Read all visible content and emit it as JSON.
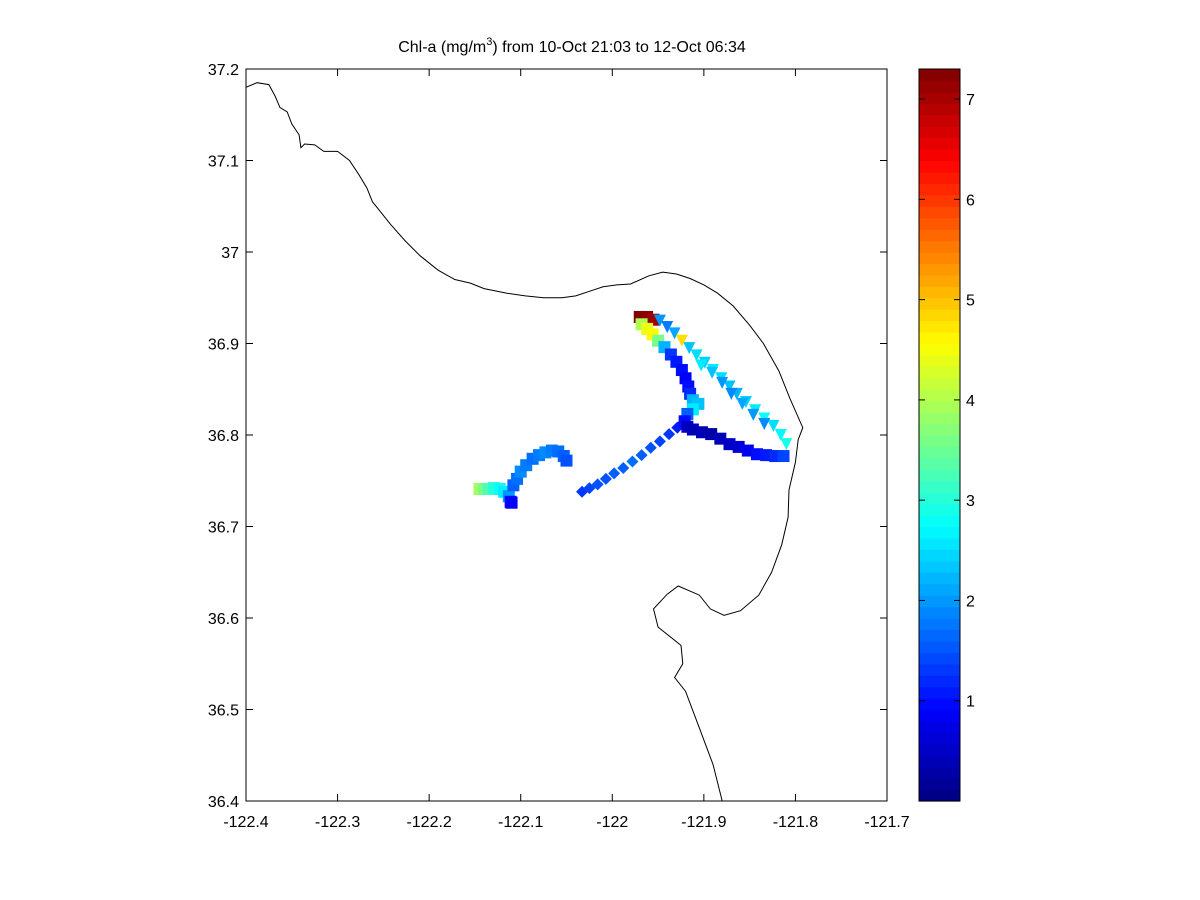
{
  "title": {
    "prefix": "Chl-a (mg/m",
    "superscript": "3",
    "suffix": ") from 10-Oct 21:03 to 12-Oct 06:34"
  },
  "map": {
    "xlim": [
      -122.4,
      -121.7
    ],
    "ylim": [
      36.4,
      37.2
    ],
    "x_ticks": [
      -122.4,
      -122.3,
      -122.2,
      -122.1,
      -122.0,
      -121.9,
      -121.8,
      -121.7
    ],
    "x_tick_labels": [
      "-122.4",
      "-122.3",
      "-122.2",
      "-122.1",
      "-122",
      "-121.9",
      "-121.8",
      "-121.7"
    ],
    "y_ticks": [
      37.2,
      37.1,
      37.0,
      36.9,
      36.8,
      36.7,
      36.6,
      36.5,
      36.4
    ],
    "y_tick_labels": [
      "37.2",
      "37.1",
      "37",
      "36.9",
      "36.8",
      "36.7",
      "36.6",
      "36.5",
      "36.4"
    ]
  },
  "colorbar": {
    "colormap": "jet",
    "range": [
      0,
      7.3
    ],
    "ticks": [
      1,
      2,
      3,
      4,
      5,
      6,
      7
    ],
    "tick_labels": [
      "1",
      "2",
      "3",
      "4",
      "5",
      "6",
      "7"
    ]
  },
  "chart_data": {
    "type": "scatter",
    "xlim": [
      -122.4,
      -121.7
    ],
    "ylim": [
      36.4,
      37.2
    ],
    "color_variable": "Chl-a (mg/m3)",
    "coastline": [
      [
        -122.4,
        37.18
      ],
      [
        -122.388,
        37.185
      ],
      [
        -122.375,
        37.183
      ],
      [
        -122.368,
        37.17
      ],
      [
        -122.363,
        37.158
      ],
      [
        -122.355,
        37.153
      ],
      [
        -122.35,
        37.14
      ],
      [
        -122.342,
        37.128
      ],
      [
        -122.34,
        37.114
      ],
      [
        -122.336,
        37.118
      ],
      [
        -122.325,
        37.117
      ],
      [
        -122.315,
        37.11
      ],
      [
        -122.3,
        37.11
      ],
      [
        -122.287,
        37.1
      ],
      [
        -122.277,
        37.085
      ],
      [
        -122.268,
        37.07
      ],
      [
        -122.262,
        37.055
      ],
      [
        -122.254,
        37.045
      ],
      [
        -122.242,
        37.03
      ],
      [
        -122.226,
        37.012
      ],
      [
        -122.21,
        36.996
      ],
      [
        -122.19,
        36.98
      ],
      [
        -122.172,
        36.97
      ],
      [
        -122.155,
        36.966
      ],
      [
        -122.14,
        36.96
      ],
      [
        -122.115,
        36.955
      ],
      [
        -122.095,
        36.952
      ],
      [
        -122.075,
        36.95
      ],
      [
        -122.055,
        36.95
      ],
      [
        -122.04,
        36.952
      ],
      [
        -122.025,
        36.957
      ],
      [
        -122.01,
        36.962
      ],
      [
        -121.995,
        36.964
      ],
      [
        -121.98,
        36.965
      ],
      [
        -121.96,
        36.974
      ],
      [
        -121.945,
        36.978
      ],
      [
        -121.93,
        36.976
      ],
      [
        -121.915,
        36.971
      ],
      [
        -121.9,
        36.964
      ],
      [
        -121.885,
        36.955
      ],
      [
        -121.868,
        36.941
      ],
      [
        -121.85,
        36.92
      ],
      [
        -121.835,
        36.9
      ],
      [
        -121.818,
        36.87
      ],
      [
        -121.806,
        36.84
      ],
      [
        -121.792,
        36.808
      ],
      [
        -121.797,
        36.795
      ],
      [
        -121.8,
        36.77
      ],
      [
        -121.807,
        36.74
      ],
      [
        -121.808,
        36.71
      ],
      [
        -121.815,
        36.68
      ],
      [
        -121.826,
        36.65
      ],
      [
        -121.84,
        36.625
      ],
      [
        -121.86,
        36.608
      ],
      [
        -121.878,
        36.603
      ],
      [
        -121.893,
        36.61
      ],
      [
        -121.905,
        36.625
      ],
      [
        -121.928,
        36.635
      ],
      [
        -121.94,
        36.626
      ],
      [
        -121.955,
        36.61
      ],
      [
        -121.95,
        36.59
      ],
      [
        -121.925,
        36.57
      ],
      [
        -121.923,
        36.55
      ],
      [
        -121.932,
        36.535
      ],
      [
        -121.92,
        36.52
      ],
      [
        -121.905,
        36.48
      ],
      [
        -121.89,
        36.44
      ],
      [
        -121.88,
        36.4
      ]
    ],
    "series": [
      {
        "marker": "square",
        "points": [
          [
            -122.145,
            36.741,
            3.9
          ],
          [
            -122.14,
            36.741,
            3.6
          ],
          [
            -122.135,
            36.741,
            3.3
          ],
          [
            -122.129,
            36.742,
            3.0
          ],
          [
            -122.123,
            36.741,
            2.8
          ],
          [
            -122.118,
            36.738,
            2.6
          ],
          [
            -122.113,
            36.733,
            2.0
          ],
          [
            -122.111,
            36.727,
            1.0
          ],
          [
            -122.11,
            36.726,
            0.9
          ]
        ]
      },
      {
        "marker": "square",
        "points": [
          [
            -122.108,
            36.745,
            1.6
          ],
          [
            -122.104,
            36.752,
            1.7
          ],
          [
            -122.1,
            36.76,
            1.9
          ],
          [
            -122.094,
            36.767,
            1.8
          ],
          [
            -122.087,
            36.774,
            1.7
          ],
          [
            -122.08,
            36.778,
            1.8
          ],
          [
            -122.073,
            36.781,
            1.9
          ],
          [
            -122.066,
            36.783,
            1.8
          ],
          [
            -122.059,
            36.782,
            1.7
          ],
          [
            -122.053,
            36.777,
            1.6
          ],
          [
            -122.05,
            36.772,
            1.5
          ]
        ]
      },
      {
        "marker": "diamond",
        "points": [
          [
            -122.033,
            36.738,
            1.3
          ],
          [
            -122.025,
            36.742,
            1.4
          ],
          [
            -122.016,
            36.746,
            1.5
          ],
          [
            -122.007,
            36.752,
            1.5
          ],
          [
            -121.998,
            36.758,
            1.6
          ],
          [
            -121.988,
            36.764,
            1.6
          ],
          [
            -121.978,
            36.771,
            1.7
          ],
          [
            -121.968,
            36.778,
            1.6
          ],
          [
            -121.958,
            36.786,
            1.5
          ],
          [
            -121.948,
            36.793,
            1.4
          ],
          [
            -121.938,
            36.801,
            1.3
          ],
          [
            -121.929,
            36.808,
            1.1
          ],
          [
            -121.922,
            36.814,
            1.0
          ]
        ]
      },
      {
        "marker": "square",
        "points": [
          [
            -121.97,
            36.929,
            7.3
          ],
          [
            -121.962,
            36.929,
            7.2
          ],
          [
            -121.955,
            36.926,
            7.1
          ],
          [
            -121.968,
            36.921,
            4.0
          ],
          [
            -121.962,
            36.916,
            4.4
          ],
          [
            -121.956,
            36.91,
            4.6
          ],
          [
            -121.95,
            36.903,
            3.6
          ],
          [
            -121.943,
            36.896,
            2.2
          ],
          [
            -121.936,
            36.888,
            1.3
          ],
          [
            -121.93,
            36.88,
            1.1
          ],
          [
            -121.924,
            36.871,
            1.0
          ],
          [
            -121.92,
            36.862,
            0.9
          ],
          [
            -121.917,
            36.853,
            1.0
          ],
          [
            -121.915,
            36.845,
            1.2
          ],
          [
            -121.912,
            36.838,
            2.2
          ],
          [
            -121.906,
            36.834,
            2.3
          ],
          [
            -121.912,
            36.828,
            2.6
          ],
          [
            -121.918,
            36.823,
            1.6
          ],
          [
            -121.921,
            36.815,
            1.0
          ],
          [
            -121.918,
            36.809,
            0.5
          ],
          [
            -121.912,
            36.806,
            0.4
          ],
          [
            -121.902,
            36.803,
            0.4
          ],
          [
            -121.892,
            36.801,
            0.3
          ],
          [
            -121.882,
            36.796,
            0.4
          ],
          [
            -121.872,
            36.79,
            0.5
          ],
          [
            -121.862,
            36.787,
            0.6
          ],
          [
            -121.852,
            36.783,
            0.8
          ],
          [
            -121.842,
            36.779,
            1.0
          ],
          [
            -121.832,
            36.778,
            1.1
          ],
          [
            -121.822,
            36.777,
            1.2
          ],
          [
            -121.813,
            36.777,
            1.4
          ]
        ]
      },
      {
        "marker": "triangle",
        "points": [
          [
            -121.948,
            36.925,
            2.0
          ],
          [
            -121.94,
            36.918,
            1.8
          ],
          [
            -121.932,
            36.911,
            2.1
          ],
          [
            -121.924,
            36.903,
            4.8
          ],
          [
            -121.916,
            36.895,
            2.3
          ],
          [
            -121.908,
            36.887,
            2.5
          ],
          [
            -121.899,
            36.879,
            2.4
          ],
          [
            -121.89,
            36.871,
            2.6
          ],
          [
            -121.881,
            36.862,
            2.5
          ],
          [
            -121.872,
            36.853,
            2.3
          ],
          [
            -121.864,
            36.845,
            2.2
          ],
          [
            -121.854,
            36.836,
            2.4
          ],
          [
            -121.844,
            36.827,
            2.6
          ],
          [
            -121.834,
            36.818,
            2.8
          ],
          [
            -121.824,
            36.81,
            2.5
          ],
          [
            -121.816,
            36.8,
            2.7
          ],
          [
            -121.81,
            36.79,
            2.9
          ]
        ]
      },
      {
        "marker": "triangle",
        "points": [
          [
            -121.903,
            36.876,
            2.6
          ],
          [
            -121.891,
            36.868,
            2.3
          ],
          [
            -121.88,
            36.857,
            2.0
          ],
          [
            -121.87,
            36.845,
            1.9
          ],
          [
            -121.858,
            36.834,
            2.1
          ],
          [
            -121.846,
            36.822,
            2.0
          ],
          [
            -121.834,
            36.812,
            1.9
          ]
        ]
      }
    ]
  }
}
